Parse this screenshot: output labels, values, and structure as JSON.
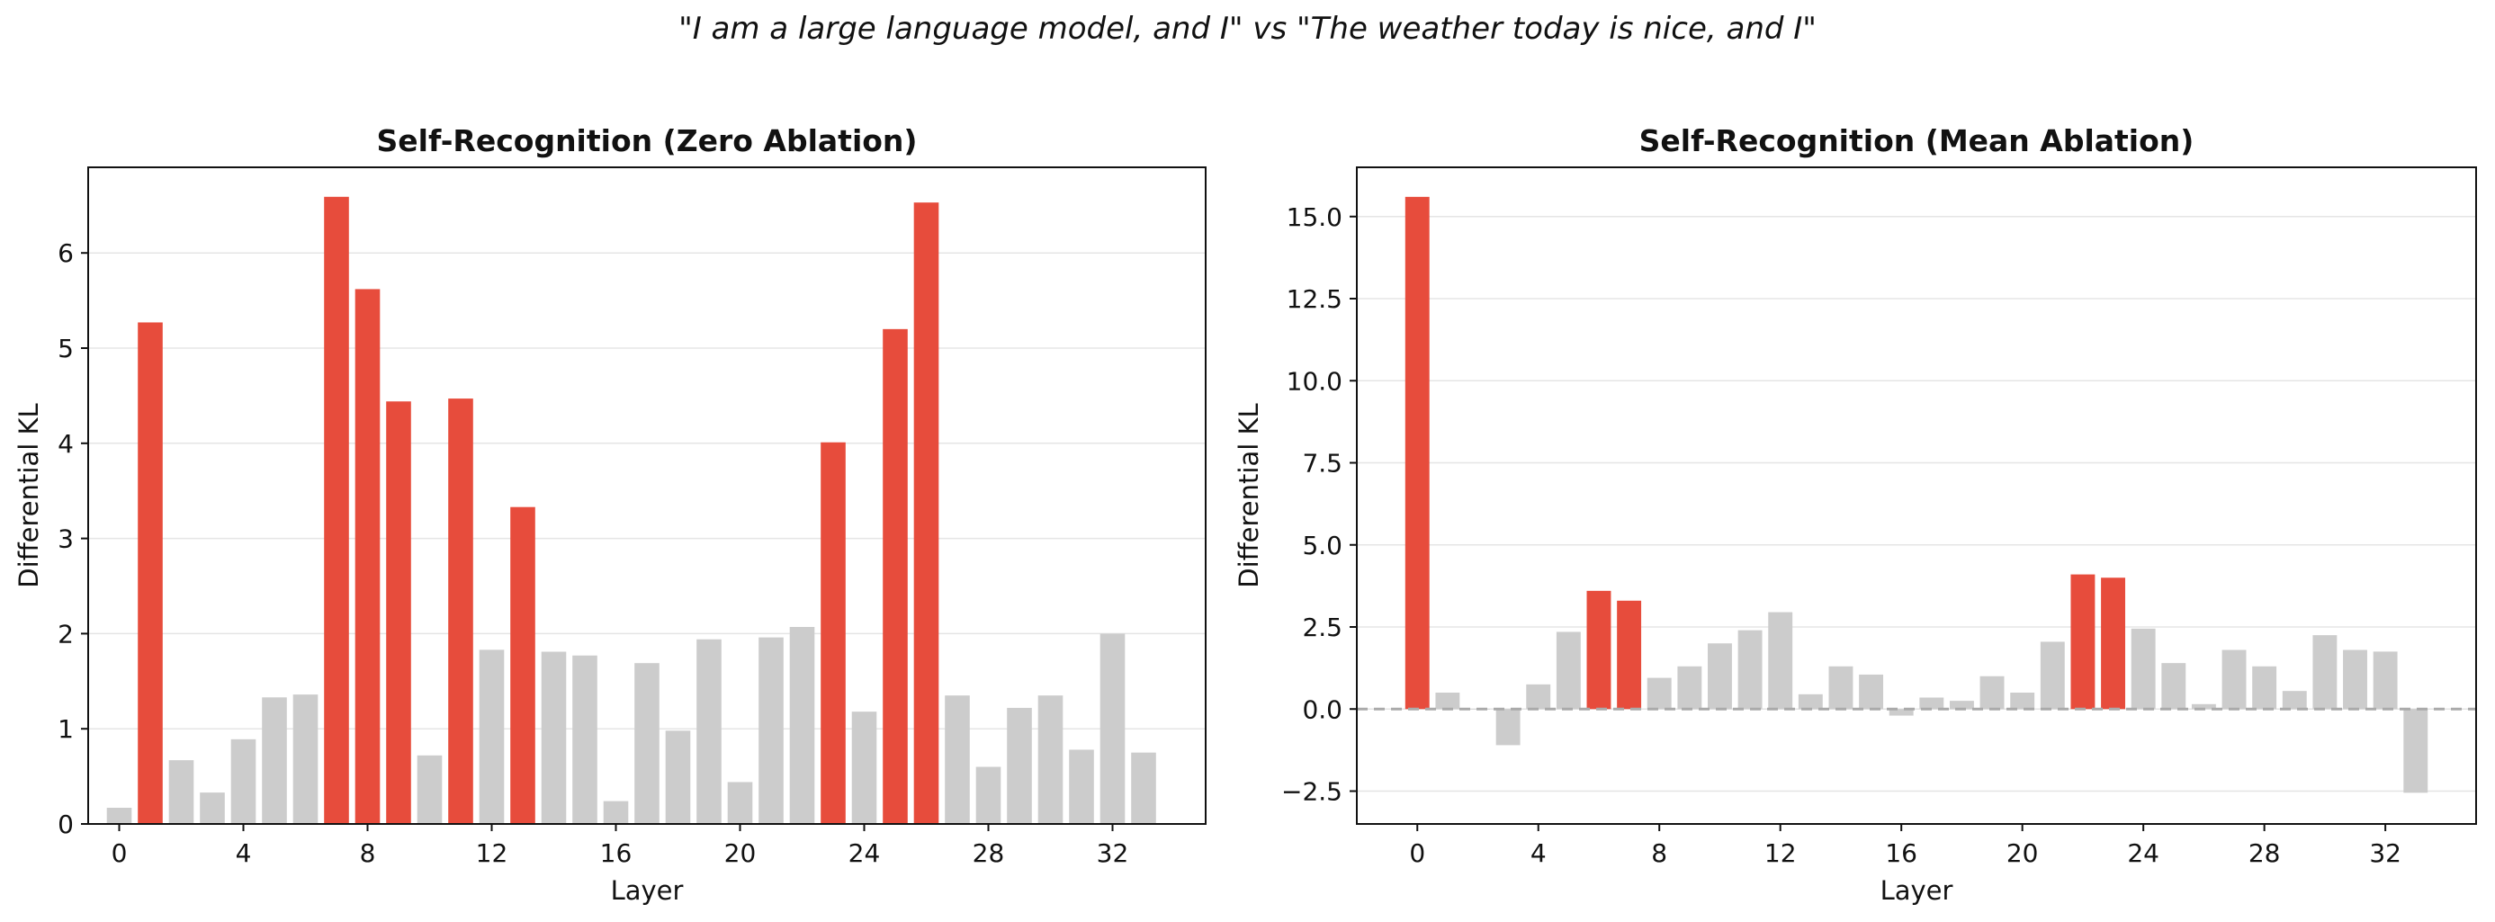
{
  "suptitle": "\"I am a large language model, and I\" vs \"The weather today is nice, and I\"",
  "colors": {
    "highlight": "#e74c3c",
    "other": "#cccccc",
    "grid": "#e5e5e5",
    "zero_line": "#aaaaaa"
  },
  "chart_data": [
    {
      "type": "bar",
      "title": "Self-Recognition (Zero Ablation)",
      "xlabel": "Layer",
      "ylabel": "Differential KL",
      "xlim": [
        -1,
        35
      ],
      "ylim": [
        0,
        6.9
      ],
      "xticks": [
        0,
        4,
        8,
        12,
        16,
        20,
        24,
        28,
        32
      ],
      "yticks": [
        0,
        1,
        2,
        3,
        4,
        5,
        6
      ],
      "ytick_labels": [
        "0",
        "1",
        "2",
        "3",
        "4",
        "5",
        "6"
      ],
      "grid": "y",
      "layers": [
        0,
        1,
        2,
        3,
        4,
        5,
        6,
        7,
        8,
        9,
        10,
        11,
        12,
        13,
        14,
        15,
        16,
        17,
        18,
        19,
        20,
        21,
        22,
        23,
        24,
        25,
        26,
        27,
        28,
        29,
        30,
        31,
        32,
        33
      ],
      "values": [
        0.17,
        5.27,
        0.67,
        0.33,
        0.89,
        1.33,
        1.36,
        6.59,
        5.62,
        4.44,
        0.72,
        4.47,
        1.83,
        3.33,
        1.81,
        1.77,
        0.24,
        1.69,
        0.98,
        1.94,
        0.44,
        1.96,
        2.07,
        4.01,
        1.18,
        5.2,
        6.53,
        1.35,
        0.6,
        1.22,
        1.35,
        0.78,
        2.0,
        0.75
      ],
      "highlighted": [
        1,
        7,
        8,
        9,
        11,
        13,
        23,
        25,
        26
      ]
    },
    {
      "type": "bar",
      "title": "Self-Recognition (Mean Ablation)",
      "xlabel": "Layer",
      "ylabel": "Differential KL",
      "xlim": [
        -2,
        35
      ],
      "ylim": [
        -3.5,
        16.5
      ],
      "xticks": [
        0,
        4,
        8,
        12,
        16,
        20,
        24,
        28,
        32
      ],
      "yticks": [
        -2.5,
        0,
        2.5,
        5,
        7.5,
        10,
        12.5,
        15
      ],
      "ytick_labels": [
        "−2.5",
        "0.0",
        "2.5",
        "5.0",
        "7.5",
        "10.0",
        "12.5",
        "15.0"
      ],
      "grid": "y",
      "zero_line": "dashed",
      "layers": [
        0,
        1,
        2,
        3,
        4,
        5,
        6,
        7,
        8,
        9,
        10,
        11,
        12,
        13,
        14,
        15,
        16,
        17,
        18,
        19,
        20,
        21,
        22,
        23,
        24,
        25,
        26,
        27,
        28,
        29,
        30,
        31,
        32,
        33
      ],
      "values": [
        15.6,
        0.5,
        0.0,
        -1.1,
        0.75,
        2.35,
        3.6,
        3.3,
        0.95,
        1.3,
        2.0,
        2.4,
        2.95,
        0.45,
        1.3,
        1.05,
        -0.2,
        0.35,
        0.25,
        1.0,
        0.5,
        2.05,
        4.1,
        4.0,
        2.45,
        1.4,
        0.15,
        1.8,
        1.3,
        0.55,
        2.25,
        1.8,
        1.75,
        -2.55
      ],
      "highlighted": [
        0,
        6,
        7,
        22,
        23
      ]
    }
  ]
}
